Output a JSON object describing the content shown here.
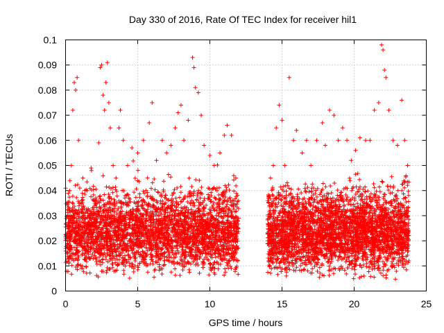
{
  "chart_data": {
    "type": "scatter",
    "title": "Day 330 of 2016, Rate Of TEC Index for receiver hil1",
    "xlabel": "GPS time / hours",
    "ylabel": "ROTI / TECUs",
    "xlim": [
      0,
      25
    ],
    "ylim": [
      0,
      0.1
    ],
    "xticks": [
      {
        "value": 0,
        "label": "0"
      },
      {
        "value": 5,
        "label": "5"
      },
      {
        "value": 10,
        "label": "10"
      },
      {
        "value": 15,
        "label": "15"
      },
      {
        "value": 20,
        "label": "20"
      },
      {
        "value": 25,
        "label": "25"
      }
    ],
    "yticks": [
      {
        "value": 0,
        "label": "0"
      },
      {
        "value": 0.01,
        "label": "0.01"
      },
      {
        "value": 0.02,
        "label": "0.02"
      },
      {
        "value": 0.03,
        "label": "0.03"
      },
      {
        "value": 0.04,
        "label": "0.04"
      },
      {
        "value": 0.05,
        "label": "0.05"
      },
      {
        "value": 0.06,
        "label": "0.06"
      },
      {
        "value": 0.07,
        "label": "0.07"
      },
      {
        "value": 0.08,
        "label": "0.08"
      },
      {
        "value": 0.09,
        "label": "0.09"
      },
      {
        "value": 0.1,
        "label": "0.1"
      }
    ],
    "grid": true,
    "marker": "plus",
    "color": "#ff0000",
    "series": [
      {
        "points": [
          [
            0.2,
            0.025
          ],
          [
            0.3,
            0.044
          ],
          [
            0.4,
            0.05
          ],
          [
            0.5,
            0.072
          ],
          [
            0.6,
            0.083
          ],
          [
            0.7,
            0.08
          ],
          [
            0.8,
            0.085
          ],
          [
            0.9,
            0.06
          ],
          [
            1.0,
            0.035
          ],
          [
            1.2,
            0.045
          ],
          [
            1.5,
            0.04
          ],
          [
            1.8,
            0.048
          ],
          [
            2.0,
            0.036
          ],
          [
            2.3,
            0.059
          ],
          [
            2.4,
            0.089
          ],
          [
            2.5,
            0.09
          ],
          [
            2.6,
            0.078
          ],
          [
            2.7,
            0.072
          ],
          [
            2.8,
            0.083
          ],
          [
            2.9,
            0.091
          ],
          [
            3.0,
            0.075
          ],
          [
            3.1,
            0.065
          ],
          [
            3.3,
            0.05
          ],
          [
            3.5,
            0.045
          ],
          [
            3.7,
            0.065
          ],
          [
            3.8,
            0.072
          ],
          [
            4.0,
            0.06
          ],
          [
            4.3,
            0.05
          ],
          [
            4.6,
            0.057
          ],
          [
            5.0,
            0.055
          ],
          [
            5.4,
            0.06
          ],
          [
            5.8,
            0.067
          ],
          [
            6.0,
            0.075
          ],
          [
            6.3,
            0.052
          ],
          [
            6.7,
            0.06
          ],
          [
            7.0,
            0.055
          ],
          [
            7.3,
            0.058
          ],
          [
            7.6,
            0.065
          ],
          [
            7.8,
            0.071
          ],
          [
            8.0,
            0.074
          ],
          [
            8.2,
            0.06
          ],
          [
            8.5,
            0.068
          ],
          [
            8.8,
            0.093
          ],
          [
            8.9,
            0.089
          ],
          [
            9.0,
            0.081
          ],
          [
            9.2,
            0.079
          ],
          [
            9.4,
            0.07
          ],
          [
            9.6,
            0.058
          ],
          [
            10.0,
            0.054
          ],
          [
            10.3,
            0.05
          ],
          [
            10.7,
            0.055
          ],
          [
            11.0,
            0.062
          ],
          [
            11.2,
            0.066
          ],
          [
            11.5,
            0.062
          ],
          [
            11.8,
            0.045
          ],
          [
            14.2,
            0.045
          ],
          [
            14.4,
            0.05
          ],
          [
            14.6,
            0.065
          ],
          [
            14.8,
            0.074
          ],
          [
            15.0,
            0.068
          ],
          [
            15.2,
            0.05
          ],
          [
            15.5,
            0.085
          ],
          [
            15.8,
            0.06
          ],
          [
            16.0,
            0.064
          ],
          [
            16.4,
            0.055
          ],
          [
            16.7,
            0.06
          ],
          [
            17.0,
            0.05
          ],
          [
            17.4,
            0.06
          ],
          [
            17.8,
            0.067
          ],
          [
            18.0,
            0.058
          ],
          [
            18.3,
            0.072
          ],
          [
            18.6,
            0.07
          ],
          [
            18.9,
            0.06
          ],
          [
            19.2,
            0.065
          ],
          [
            19.5,
            0.06
          ],
          [
            19.8,
            0.052
          ],
          [
            20.1,
            0.056
          ],
          [
            20.4,
            0.061
          ],
          [
            20.8,
            0.06
          ],
          [
            21.1,
            0.06
          ],
          [
            21.4,
            0.072
          ],
          [
            21.7,
            0.075
          ],
          [
            21.9,
            0.098
          ],
          [
            22.0,
            0.096
          ],
          [
            22.1,
            0.088
          ],
          [
            22.2,
            0.085
          ],
          [
            22.4,
            0.072
          ],
          [
            22.7,
            0.06
          ],
          [
            23.0,
            0.058
          ],
          [
            23.3,
            0.076
          ],
          [
            23.5,
            0.06
          ],
          [
            23.7,
            0.05
          ]
        ],
        "clouds": [
          {
            "x": [
              0,
              12
            ],
            "y": [
              0.004,
              0.045
            ]
          },
          {
            "x": [
              14,
              23.8
            ],
            "y": [
              0.004,
              0.045
            ]
          }
        ]
      }
    ]
  }
}
